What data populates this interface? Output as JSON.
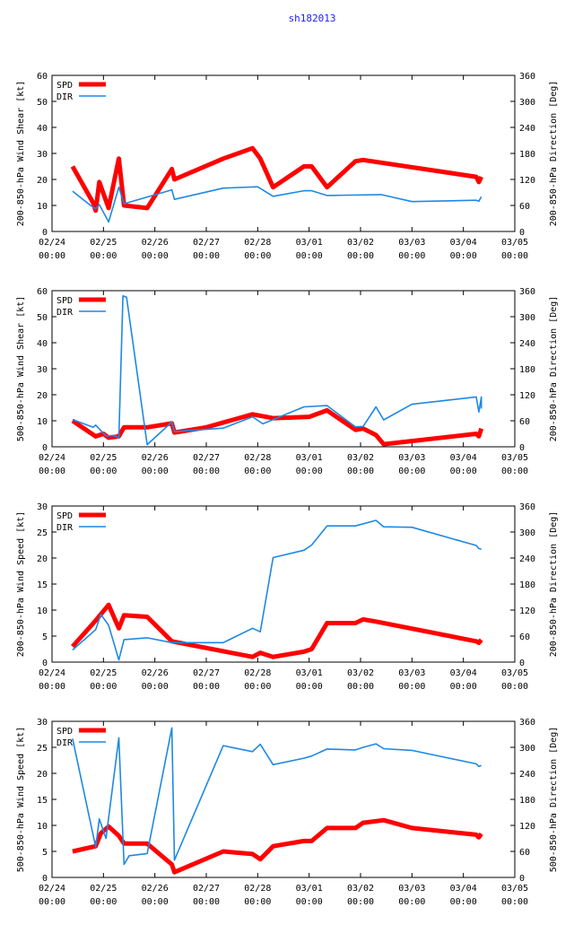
{
  "page_title": "sh182013",
  "colors": {
    "spd": "#ff0000",
    "dir": "#1e88e5",
    "title": "#1a1aff"
  },
  "chart_data": [
    {
      "type": "line",
      "id": "shear-200-850",
      "ylabel": "200-850-hPa Wind Shear [kt]",
      "y2label": "200-850-hPa Direction [Deg]",
      "ylim": [
        0,
        60
      ],
      "y2lim": [
        0,
        360
      ],
      "yticks": [
        "0",
        "10",
        "20",
        "30",
        "40",
        "50",
        "60"
      ],
      "y2ticks": [
        "0",
        "60",
        "120",
        "180",
        "240",
        "300",
        "360"
      ],
      "xlim": [
        0,
        9
      ],
      "xticks": [
        [
          "02/24",
          "00:00"
        ],
        [
          "02/25",
          "00:00"
        ],
        [
          "02/26",
          "00:00"
        ],
        [
          "02/27",
          "00:00"
        ],
        [
          "02/28",
          "00:00"
        ],
        [
          "03/01",
          "00:00"
        ],
        [
          "03/02",
          "00:00"
        ],
        [
          "03/03",
          "00:00"
        ],
        [
          "03/04",
          "00:00"
        ],
        [
          "03/05",
          "00:00"
        ]
      ],
      "legend": [
        "SPD",
        "DIR"
      ],
      "series": [
        {
          "name": "SPD",
          "axis": "left",
          "points": [
            [
              0.4,
              25
            ],
            [
              0.8,
              11
            ],
            [
              0.85,
              8
            ],
            [
              0.92,
              19
            ],
            [
              1.1,
              9
            ],
            [
              1.3,
              28
            ],
            [
              1.4,
              10
            ],
            [
              1.85,
              9
            ],
            [
              2.33,
              24
            ],
            [
              2.38,
              20
            ],
            [
              3.33,
              28
            ],
            [
              3.9,
              32
            ],
            [
              4.05,
              28
            ],
            [
              4.3,
              17
            ],
            [
              4.9,
              25
            ],
            [
              5.05,
              25
            ],
            [
              5.35,
              17
            ],
            [
              5.9,
              27
            ],
            [
              6.05,
              27.5
            ],
            [
              8.25,
              21
            ],
            [
              8.3,
              19
            ],
            [
              8.35,
              21
            ]
          ]
        },
        {
          "name": "DIR",
          "axis": "right",
          "points": [
            [
              0.4,
              93
            ],
            [
              0.75,
              60
            ],
            [
              0.85,
              52
            ],
            [
              0.92,
              62
            ],
            [
              1.1,
              22
            ],
            [
              1.3,
              102
            ],
            [
              1.4,
              64
            ],
            [
              2.33,
              96
            ],
            [
              2.38,
              74
            ],
            [
              3.33,
              100
            ],
            [
              4.0,
              103
            ],
            [
              4.3,
              81
            ],
            [
              4.9,
              94
            ],
            [
              5.05,
              94
            ],
            [
              5.35,
              83
            ],
            [
              6.4,
              85
            ],
            [
              7.0,
              69
            ],
            [
              8.25,
              72
            ],
            [
              8.3,
              70
            ],
            [
              8.35,
              80
            ]
          ]
        }
      ]
    },
    {
      "type": "line",
      "id": "shear-500-850",
      "ylabel": "500-850-hPa Wind Shear [kt]",
      "y2label": "200-850-hPa Direction [Deg]",
      "ylim": [
        0,
        60
      ],
      "y2lim": [
        0,
        360
      ],
      "yticks": [
        "0",
        "10",
        "20",
        "30",
        "40",
        "50",
        "60"
      ],
      "y2ticks": [
        "0",
        "60",
        "120",
        "180",
        "240",
        "300",
        "360"
      ],
      "xlim": [
        0,
        9
      ],
      "xticks": [
        [
          "02/24",
          "00:00"
        ],
        [
          "02/25",
          "00:00"
        ],
        [
          "02/26",
          "00:00"
        ],
        [
          "02/27",
          "00:00"
        ],
        [
          "02/28",
          "00:00"
        ],
        [
          "03/01",
          "00:00"
        ],
        [
          "03/02",
          "00:00"
        ],
        [
          "03/03",
          "00:00"
        ],
        [
          "03/04",
          "00:00"
        ],
        [
          "03/05",
          "00:00"
        ]
      ],
      "legend": [
        "SPD",
        "DIR"
      ],
      "series": [
        {
          "name": "SPD",
          "axis": "left",
          "points": [
            [
              0.4,
              10
            ],
            [
              0.85,
              4
            ],
            [
              1.0,
              5
            ],
            [
              1.1,
              3.5
            ],
            [
              1.3,
              4
            ],
            [
              1.4,
              7.5
            ],
            [
              1.85,
              7.5
            ],
            [
              2.33,
              9
            ],
            [
              2.38,
              5.5
            ],
            [
              3.0,
              7.5
            ],
            [
              3.9,
              12.5
            ],
            [
              4.3,
              11
            ],
            [
              5.0,
              11.5
            ],
            [
              5.35,
              14
            ],
            [
              5.9,
              6.5
            ],
            [
              6.05,
              7
            ],
            [
              6.3,
              4.5
            ],
            [
              6.45,
              1
            ],
            [
              8.25,
              5
            ],
            [
              8.3,
              4
            ],
            [
              8.35,
              7
            ]
          ]
        },
        {
          "name": "DIR",
          "axis": "right",
          "points": [
            [
              0.4,
              63
            ],
            [
              0.8,
              45
            ],
            [
              0.85,
              50
            ],
            [
              1.05,
              25
            ],
            [
              1.2,
              26
            ],
            [
              1.3,
              20
            ],
            [
              1.38,
              348
            ],
            [
              1.45,
              345
            ],
            [
              1.85,
              5
            ],
            [
              2.33,
              57
            ],
            [
              2.38,
              35
            ],
            [
              3.33,
              43
            ],
            [
              3.9,
              69
            ],
            [
              4.1,
              53
            ],
            [
              4.9,
              92
            ],
            [
              5.35,
              95
            ],
            [
              5.9,
              46
            ],
            [
              6.05,
              47
            ],
            [
              6.3,
              92
            ],
            [
              6.45,
              62
            ],
            [
              7.0,
              98
            ],
            [
              8.25,
              115
            ],
            [
              8.3,
              80
            ],
            [
              8.35,
              115
            ],
            [
              8.35,
              88
            ]
          ]
        }
      ]
    },
    {
      "type": "line",
      "id": "speed-200-850",
      "ylabel": "200-850-hPa Wind Speed [kt]",
      "y2label": "200-850-hPa Direction [Deg]",
      "ylim": [
        0,
        30
      ],
      "y2lim": [
        0,
        360
      ],
      "yticks": [
        "0",
        "5",
        "10",
        "15",
        "20",
        "25",
        "30"
      ],
      "y2ticks": [
        "0",
        "60",
        "120",
        "180",
        "240",
        "300",
        "360"
      ],
      "xlim": [
        0,
        9
      ],
      "xticks": [
        [
          "02/24",
          "00:00"
        ],
        [
          "02/25",
          "00:00"
        ],
        [
          "02/26",
          "00:00"
        ],
        [
          "02/27",
          "00:00"
        ],
        [
          "02/28",
          "00:00"
        ],
        [
          "03/01",
          "00:00"
        ],
        [
          "03/02",
          "00:00"
        ],
        [
          "03/03",
          "00:00"
        ],
        [
          "03/04",
          "00:00"
        ],
        [
          "03/05",
          "00:00"
        ]
      ],
      "legend": [
        "SPD",
        "DIR"
      ],
      "series": [
        {
          "name": "SPD",
          "axis": "left",
          "points": [
            [
              0.4,
              3
            ],
            [
              0.85,
              8
            ],
            [
              1.1,
              11
            ],
            [
              1.3,
              6.5
            ],
            [
              1.4,
              9
            ],
            [
              1.85,
              8.7
            ],
            [
              2.33,
              4
            ],
            [
              3.9,
              1
            ],
            [
              4.05,
              1.8
            ],
            [
              4.3,
              1
            ],
            [
              4.9,
              2
            ],
            [
              5.05,
              2.5
            ],
            [
              5.35,
              7.5
            ],
            [
              5.9,
              7.5
            ],
            [
              6.05,
              8.2
            ],
            [
              6.3,
              7.8
            ],
            [
              8.25,
              4
            ],
            [
              8.3,
              3.7
            ],
            [
              8.35,
              4.3
            ]
          ]
        },
        {
          "name": "DIR",
          "axis": "right",
          "points": [
            [
              0.4,
              28
            ],
            [
              0.85,
              75
            ],
            [
              0.95,
              110
            ],
            [
              1.1,
              85
            ],
            [
              1.3,
              5
            ],
            [
              1.4,
              52
            ],
            [
              1.85,
              56
            ],
            [
              2.33,
              45
            ],
            [
              3.33,
              45
            ],
            [
              3.9,
              78
            ],
            [
              4.05,
              70
            ],
            [
              4.3,
              241
            ],
            [
              4.9,
              258
            ],
            [
              5.05,
              270
            ],
            [
              5.35,
              314
            ],
            [
              5.9,
              314
            ],
            [
              6.3,
              327
            ],
            [
              6.45,
              312
            ],
            [
              7.0,
              311
            ],
            [
              8.25,
              269
            ],
            [
              8.3,
              262
            ],
            [
              8.35,
              260
            ]
          ]
        }
      ]
    },
    {
      "type": "line",
      "id": "speed-500-850",
      "ylabel": "500-850-hPa Wind Speed [kt]",
      "y2label": "500-850-hPa Direction [Deg]",
      "ylim": [
        0,
        30
      ],
      "y2lim": [
        0,
        360
      ],
      "yticks": [
        "0",
        "5",
        "10",
        "15",
        "20",
        "25",
        "30"
      ],
      "y2ticks": [
        "0",
        "60",
        "120",
        "180",
        "240",
        "300",
        "360"
      ],
      "xlim": [
        0,
        9
      ],
      "xticks": [
        [
          "02/24",
          "00:00"
        ],
        [
          "02/25",
          "00:00"
        ],
        [
          "02/26",
          "00:00"
        ],
        [
          "02/27",
          "00:00"
        ],
        [
          "02/28",
          "00:00"
        ],
        [
          "03/01",
          "00:00"
        ],
        [
          "03/02",
          "00:00"
        ],
        [
          "03/03",
          "00:00"
        ],
        [
          "03/04",
          "00:00"
        ],
        [
          "03/05",
          "00:00"
        ]
      ],
      "legend": [
        "SPD",
        "DIR"
      ],
      "series": [
        {
          "name": "SPD",
          "axis": "left",
          "points": [
            [
              0.4,
              5
            ],
            [
              0.85,
              6
            ],
            [
              0.95,
              8.5
            ],
            [
              1.1,
              9.8
            ],
            [
              1.3,
              8
            ],
            [
              1.4,
              6.5
            ],
            [
              1.85,
              6.5
            ],
            [
              2.33,
              2.5
            ],
            [
              2.38,
              1
            ],
            [
              3.33,
              5
            ],
            [
              3.9,
              4.5
            ],
            [
              4.05,
              3.5
            ],
            [
              4.3,
              6
            ],
            [
              4.9,
              7
            ],
            [
              5.05,
              7
            ],
            [
              5.35,
              9.5
            ],
            [
              5.9,
              9.5
            ],
            [
              6.05,
              10.5
            ],
            [
              6.45,
              11
            ],
            [
              7.0,
              9.5
            ],
            [
              8.25,
              8.2
            ],
            [
              8.3,
              7.7
            ],
            [
              8.35,
              8.4
            ]
          ]
        },
        {
          "name": "DIR",
          "axis": "right",
          "points": [
            [
              0.4,
              320
            ],
            [
              0.85,
              70
            ],
            [
              0.92,
              135
            ],
            [
              1.05,
              90
            ],
            [
              1.3,
              322
            ],
            [
              1.4,
              30
            ],
            [
              1.5,
              50
            ],
            [
              1.85,
              55
            ],
            [
              2.33,
              345
            ],
            [
              2.38,
              40
            ],
            [
              3.33,
              304
            ],
            [
              3.9,
              290
            ],
            [
              4.05,
              307
            ],
            [
              4.3,
              260
            ],
            [
              4.9,
              275
            ],
            [
              5.05,
              280
            ],
            [
              5.35,
              296
            ],
            [
              5.9,
              294
            ],
            [
              6.05,
              300
            ],
            [
              6.3,
              308
            ],
            [
              6.45,
              297
            ],
            [
              7.0,
              293
            ],
            [
              8.25,
              262
            ],
            [
              8.3,
              256
            ],
            [
              8.35,
              258
            ]
          ]
        }
      ]
    }
  ]
}
